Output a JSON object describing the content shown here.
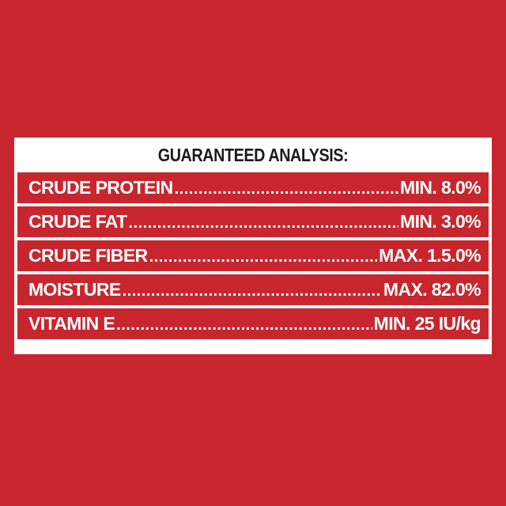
{
  "title": "GUARANTEED ANALYSIS:",
  "rows": [
    {
      "name": "CRUDE PROTEIN",
      "value": "MIN. 8.0%"
    },
    {
      "name": "CRUDE FAT",
      "value": "MIN. 3.0%"
    },
    {
      "name": "CRUDE FIBER",
      "value": "MAX. 1.5.0%"
    },
    {
      "name": "MOISTURE",
      "value": "MAX. 82.0%"
    },
    {
      "name": "VITAMIN E",
      "value": "MIN. 25 IU/kg"
    }
  ],
  "colors": {
    "background": "#c8262e",
    "panel": "#ffffff",
    "title_text": "#1b1b1b",
    "row_text": "#ffffff"
  }
}
